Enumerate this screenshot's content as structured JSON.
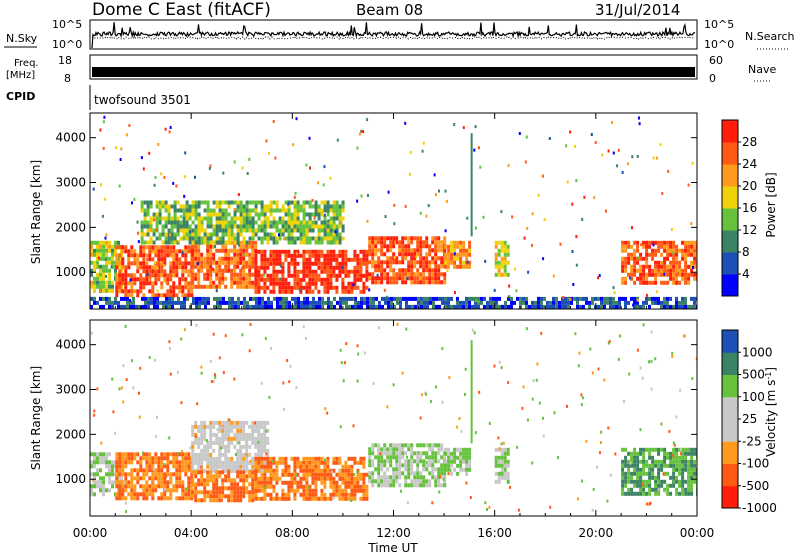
{
  "header": {
    "title": "Dome C East (fitACF)",
    "beam": "Beam 08",
    "date": "31/Jul/2014"
  },
  "panels": {
    "nsky_label": "N.Sky",
    "nsky_ticks": [
      "10^5",
      "10^0"
    ],
    "nsearch_label": "N.Search",
    "nsearch_ticks": [
      "10^5",
      "10^0"
    ],
    "freq_label": "Freq.",
    "freq_unit": "[MHz]",
    "freq_ticks": [
      "18",
      "8"
    ],
    "nave_label": "Nave",
    "nave_ticks": [
      "60",
      "0"
    ],
    "cpid_label": "CPID",
    "cpid_value": "twofsound 3501"
  },
  "colors": {
    "power": [
      "#0000ff",
      "#1e4fb4",
      "#3c8264",
      "#66c23c",
      "#f0d20a",
      "#ff9a1e",
      "#ff5a14",
      "#ff1e0a"
    ],
    "velocity": [
      "#ff1e0a",
      "#ff5a14",
      "#ff9a1e",
      "#c8c8c8",
      "#c8c8c8",
      "#66c23c",
      "#3c8264",
      "#1e4fb4"
    ]
  },
  "chart_data": [
    {
      "type": "heatmap",
      "quantity": "Power",
      "ylabel": "Slant Range [km]",
      "yticks": [
        "4000",
        "3000",
        "2000",
        "1000"
      ],
      "ylim": [
        180,
        4550
      ],
      "xlim": [
        0,
        24
      ],
      "colorbar_label": "Power [dB]",
      "colorbar_ticks": [
        "28",
        "24",
        "20",
        "16",
        "12",
        "8",
        "4"
      ],
      "colorbar_range": [
        0,
        32
      ],
      "regions": [
        {
          "x": [
            0.0,
            1.2
          ],
          "y": [
            600,
            1700
          ],
          "value": 16
        },
        {
          "x": [
            1.0,
            4.0
          ],
          "y": [
            500,
            1600
          ],
          "value": 27
        },
        {
          "x": [
            4.0,
            6.5
          ],
          "y": [
            700,
            1700
          ],
          "value": 25
        },
        {
          "x": [
            6.5,
            11.0
          ],
          "y": [
            550,
            1500
          ],
          "value": 29
        },
        {
          "x": [
            11.0,
            14.0
          ],
          "y": [
            800,
            1800
          ],
          "value": 27
        },
        {
          "x": [
            14.0,
            15.0
          ],
          "y": [
            1100,
            1700
          ],
          "value": 22
        },
        {
          "x": [
            16.0,
            16.5
          ],
          "y": [
            900,
            1700
          ],
          "value": 18
        },
        {
          "x": [
            21.0,
            24.0
          ],
          "y": [
            750,
            1700
          ],
          "value": 26
        },
        {
          "x": [
            2.0,
            10.0
          ],
          "y": [
            1700,
            2600
          ],
          "value": 14
        },
        {
          "x": [
            0.0,
            24.0
          ],
          "y": [
            250,
            450
          ],
          "value": 6
        }
      ]
    },
    {
      "type": "heatmap",
      "quantity": "Velocity",
      "ylabel": "Slant Range [km]",
      "yticks": [
        "4000",
        "3000",
        "2000",
        "1000"
      ],
      "ylim": [
        180,
        4550
      ],
      "xlim": [
        0,
        24
      ],
      "xlabel": "Time UT",
      "xticks": [
        "00:00",
        "04:00",
        "08:00",
        "12:00",
        "16:00",
        "20:00",
        "00:00"
      ],
      "colorbar_label": "Velocity [m s^-1]",
      "colorbar_ticks": [
        "1000",
        "500",
        "100",
        "25",
        "-25",
        "-100",
        "-500",
        "-1000"
      ],
      "regions": [
        {
          "x": [
            0.0,
            1.2
          ],
          "y": [
            700,
            1600
          ],
          "value": 100
        },
        {
          "x": [
            1.0,
            4.0
          ],
          "y": [
            550,
            1600
          ],
          "value": -100
        },
        {
          "x": [
            4.0,
            7.0
          ],
          "y": [
            1200,
            2300
          ],
          "value": 0
        },
        {
          "x": [
            4.0,
            6.5
          ],
          "y": [
            550,
            1200
          ],
          "value": -100
        },
        {
          "x": [
            6.5,
            11.0
          ],
          "y": [
            550,
            1500
          ],
          "value": -100
        },
        {
          "x": [
            11.0,
            14.0
          ],
          "y": [
            900,
            1800
          ],
          "value": 100
        },
        {
          "x": [
            14.0,
            15.0
          ],
          "y": [
            1100,
            1700
          ],
          "value": 100
        },
        {
          "x": [
            16.0,
            16.5
          ],
          "y": [
            900,
            1700
          ],
          "value": 100
        },
        {
          "x": [
            21.0,
            24.0
          ],
          "y": [
            700,
            1700
          ],
          "value": 500
        }
      ]
    }
  ]
}
